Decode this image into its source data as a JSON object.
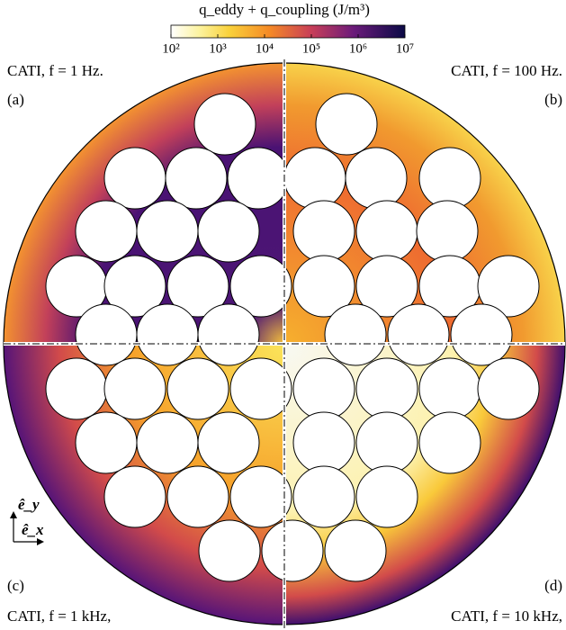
{
  "colorbar": {
    "title": "q_eddy + q_coupling (J/m³)",
    "scale": "log",
    "lim": [
      100,
      10000000
    ],
    "ticks": [
      {
        "value": 100,
        "label": "10²"
      },
      {
        "value": 1000,
        "label": "10³"
      },
      {
        "value": 10000,
        "label": "10⁴"
      },
      {
        "value": 100000,
        "label": "10⁵"
      },
      {
        "value": 1000000,
        "label": "10⁶"
      },
      {
        "value": 10000000,
        "label": "10⁷"
      }
    ]
  },
  "panels": [
    {
      "letter": "(a)",
      "caption": "CATI, f = 1 Hz."
    },
    {
      "letter": "(b)",
      "caption": "CATI, f = 100 Hz."
    },
    {
      "letter": "(c)",
      "caption": "CATI, f = 1 kHz,"
    },
    {
      "letter": "(d)",
      "caption": "CATI, f = 10 kHz,"
    }
  ],
  "axes": {
    "y": "ê_y",
    "x": "ê_x"
  }
}
